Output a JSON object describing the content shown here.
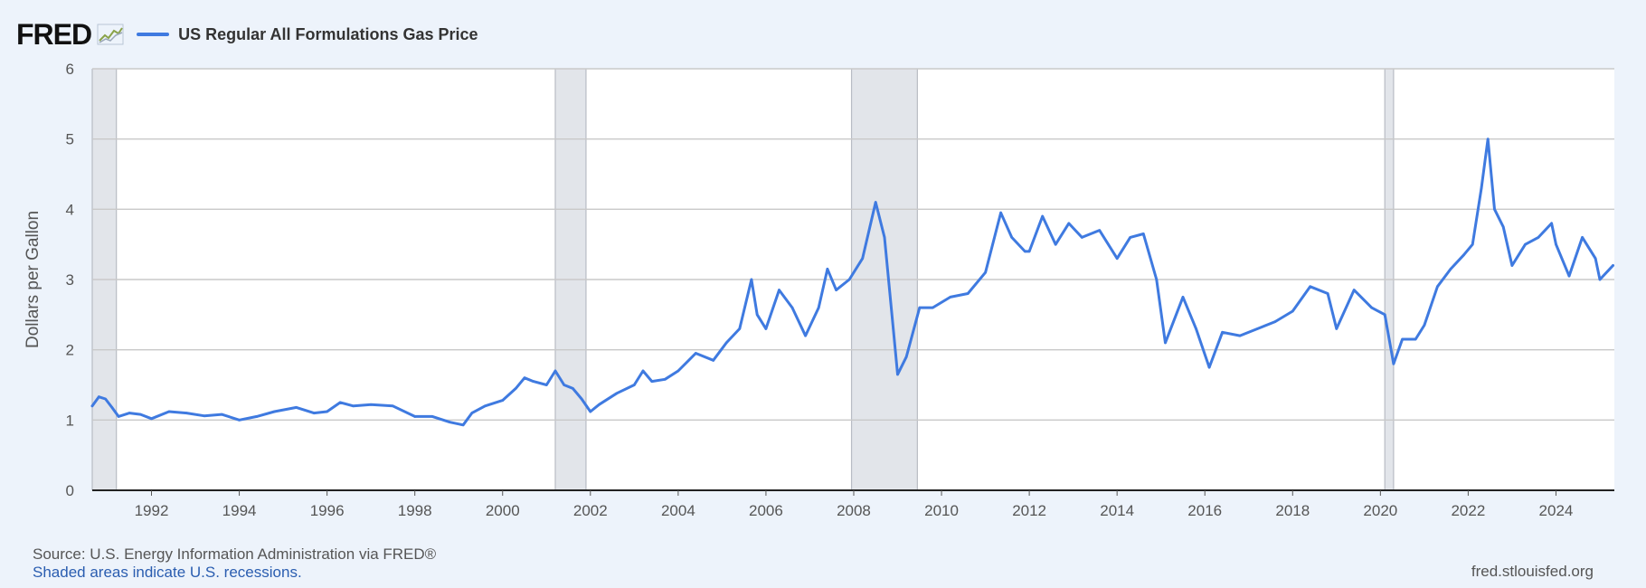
{
  "header": {
    "logo_text": "FRED",
    "logo_icon": "line-graph-icon",
    "legend_label": "US Regular All Formulations Gas Price",
    "series_color": "#3f7ae0"
  },
  "footer": {
    "source": "Source: U.S. Energy Information Administration via FRED®",
    "recession_note": "Shaded areas indicate U.S. recessions.",
    "site": "fred.stlouisfed.org"
  },
  "chart_data": {
    "type": "line",
    "title": "US Regular All Formulations Gas Price",
    "xlabel": "",
    "ylabel": "Dollars per Gallon",
    "xlim": [
      1990.65,
      2025.33
    ],
    "ylim": [
      0,
      6
    ],
    "yticks": [
      0,
      1,
      2,
      3,
      4,
      5,
      6
    ],
    "xticks": [
      1992,
      1994,
      1996,
      1998,
      2000,
      2002,
      2004,
      2006,
      2008,
      2010,
      2012,
      2014,
      2016,
      2018,
      2020,
      2022,
      2024
    ],
    "grid": true,
    "legend": "top-left",
    "recessions": [
      [
        1990.65,
        1991.2
      ],
      [
        2001.2,
        2001.9
      ],
      [
        2007.95,
        2009.45
      ],
      [
        2020.1,
        2020.3
      ]
    ],
    "series": [
      {
        "name": "US Regular All Formulations Gas Price",
        "x": [
          1990.65,
          1990.8,
          1990.95,
          1991.1,
          1991.25,
          1991.5,
          1991.75,
          1992.0,
          1992.4,
          1992.8,
          1993.2,
          1993.6,
          1994.0,
          1994.4,
          1994.8,
          1995.3,
          1995.7,
          1996.0,
          1996.3,
          1996.6,
          1997.0,
          1997.5,
          1998.0,
          1998.4,
          1998.8,
          1999.1,
          1999.3,
          1999.6,
          2000.0,
          2000.3,
          2000.5,
          2000.7,
          2001.0,
          2001.2,
          2001.4,
          2001.6,
          2001.8,
          2002.0,
          2002.2,
          2002.6,
          2003.0,
          2003.2,
          2003.4,
          2003.7,
          2004.0,
          2004.4,
          2004.8,
          2005.1,
          2005.4,
          2005.67,
          2005.8,
          2006.0,
          2006.3,
          2006.6,
          2006.9,
          2007.2,
          2007.4,
          2007.6,
          2007.9,
          2008.2,
          2008.5,
          2008.7,
          2008.9,
          2009.0,
          2009.2,
          2009.5,
          2009.8,
          2010.2,
          2010.6,
          2011.0,
          2011.35,
          2011.6,
          2011.9,
          2012.0,
          2012.3,
          2012.6,
          2012.9,
          2013.2,
          2013.6,
          2014.0,
          2014.3,
          2014.6,
          2014.9,
          2015.1,
          2015.5,
          2015.8,
          2016.1,
          2016.4,
          2016.8,
          2017.2,
          2017.6,
          2018.0,
          2018.4,
          2018.8,
          2019.0,
          2019.4,
          2019.8,
          2020.1,
          2020.3,
          2020.5,
          2020.8,
          2021.0,
          2021.3,
          2021.6,
          2021.9,
          2022.1,
          2022.3,
          2022.45,
          2022.6,
          2022.8,
          2023.0,
          2023.3,
          2023.6,
          2023.9,
          2024.0,
          2024.3,
          2024.6,
          2024.9,
          2025.0,
          2025.3
        ],
        "values": [
          1.2,
          1.33,
          1.3,
          1.18,
          1.05,
          1.1,
          1.08,
          1.02,
          1.12,
          1.1,
          1.06,
          1.08,
          1.0,
          1.05,
          1.12,
          1.18,
          1.1,
          1.12,
          1.25,
          1.2,
          1.22,
          1.2,
          1.05,
          1.05,
          0.97,
          0.93,
          1.1,
          1.2,
          1.28,
          1.45,
          1.6,
          1.55,
          1.5,
          1.7,
          1.5,
          1.45,
          1.3,
          1.12,
          1.22,
          1.38,
          1.5,
          1.7,
          1.55,
          1.58,
          1.7,
          1.95,
          1.85,
          2.1,
          2.3,
          3.0,
          2.5,
          2.3,
          2.85,
          2.6,
          2.2,
          2.6,
          3.15,
          2.85,
          3.0,
          3.3,
          4.1,
          3.6,
          2.3,
          1.65,
          1.9,
          2.6,
          2.6,
          2.75,
          2.8,
          3.1,
          3.95,
          3.6,
          3.4,
          3.4,
          3.9,
          3.5,
          3.8,
          3.6,
          3.7,
          3.3,
          3.6,
          3.65,
          3.0,
          2.1,
          2.75,
          2.3,
          1.75,
          2.25,
          2.2,
          2.3,
          2.4,
          2.55,
          2.9,
          2.8,
          2.3,
          2.85,
          2.6,
          2.5,
          1.8,
          2.15,
          2.15,
          2.35,
          2.9,
          3.15,
          3.35,
          3.5,
          4.3,
          5.0,
          4.0,
          3.75,
          3.2,
          3.5,
          3.6,
          3.8,
          3.5,
          3.05,
          3.6,
          3.3,
          3.0,
          3.2
        ]
      }
    ]
  }
}
